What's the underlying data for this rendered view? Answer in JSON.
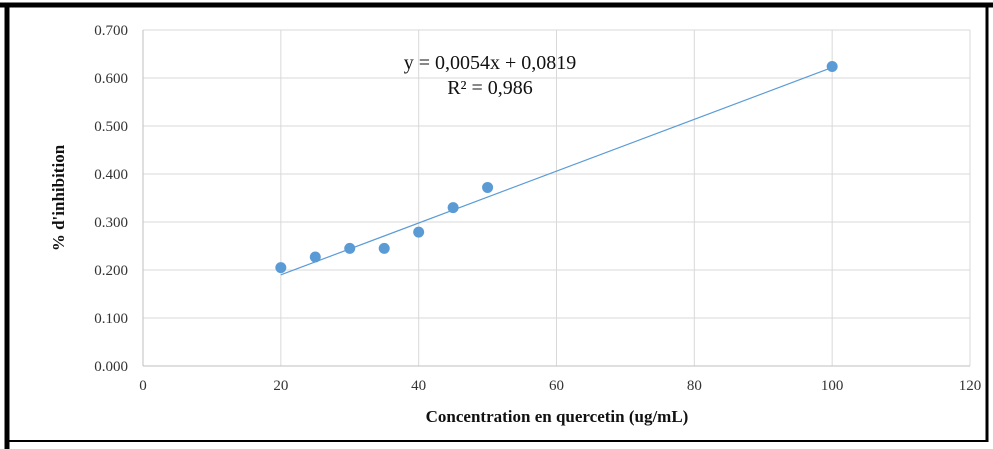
{
  "chart_data": {
    "type": "scatter",
    "title": "",
    "xlabel": "Concentration en quercetin (ug/mL)",
    "ylabel": "% d'inhibition",
    "xlim": [
      0,
      120
    ],
    "ylim": [
      0,
      0.7
    ],
    "x_ticks": [
      "0",
      "20",
      "40",
      "60",
      "80",
      "100",
      "120"
    ],
    "y_ticks": [
      "0.000",
      "0.100",
      "0.200",
      "0.300",
      "0.400",
      "0.500",
      "0.600",
      "0.700"
    ],
    "grid": true,
    "legend": "none",
    "series": [
      {
        "x": [
          20,
          25,
          30,
          35,
          40,
          45,
          50,
          100
        ],
        "y": [
          0.205,
          0.227,
          0.245,
          0.245,
          0.279,
          0.33,
          0.372,
          0.624
        ],
        "color": "#5b9bd5"
      }
    ],
    "trendline": {
      "type": "linear",
      "slope": 0.0054,
      "intercept": 0.0819,
      "x_range": [
        20,
        100
      ],
      "color": "#5b9bd5"
    },
    "annotations": {
      "equation": "y = 0,0054x + 0,0819",
      "r_squared": "R² = 0,986"
    }
  }
}
